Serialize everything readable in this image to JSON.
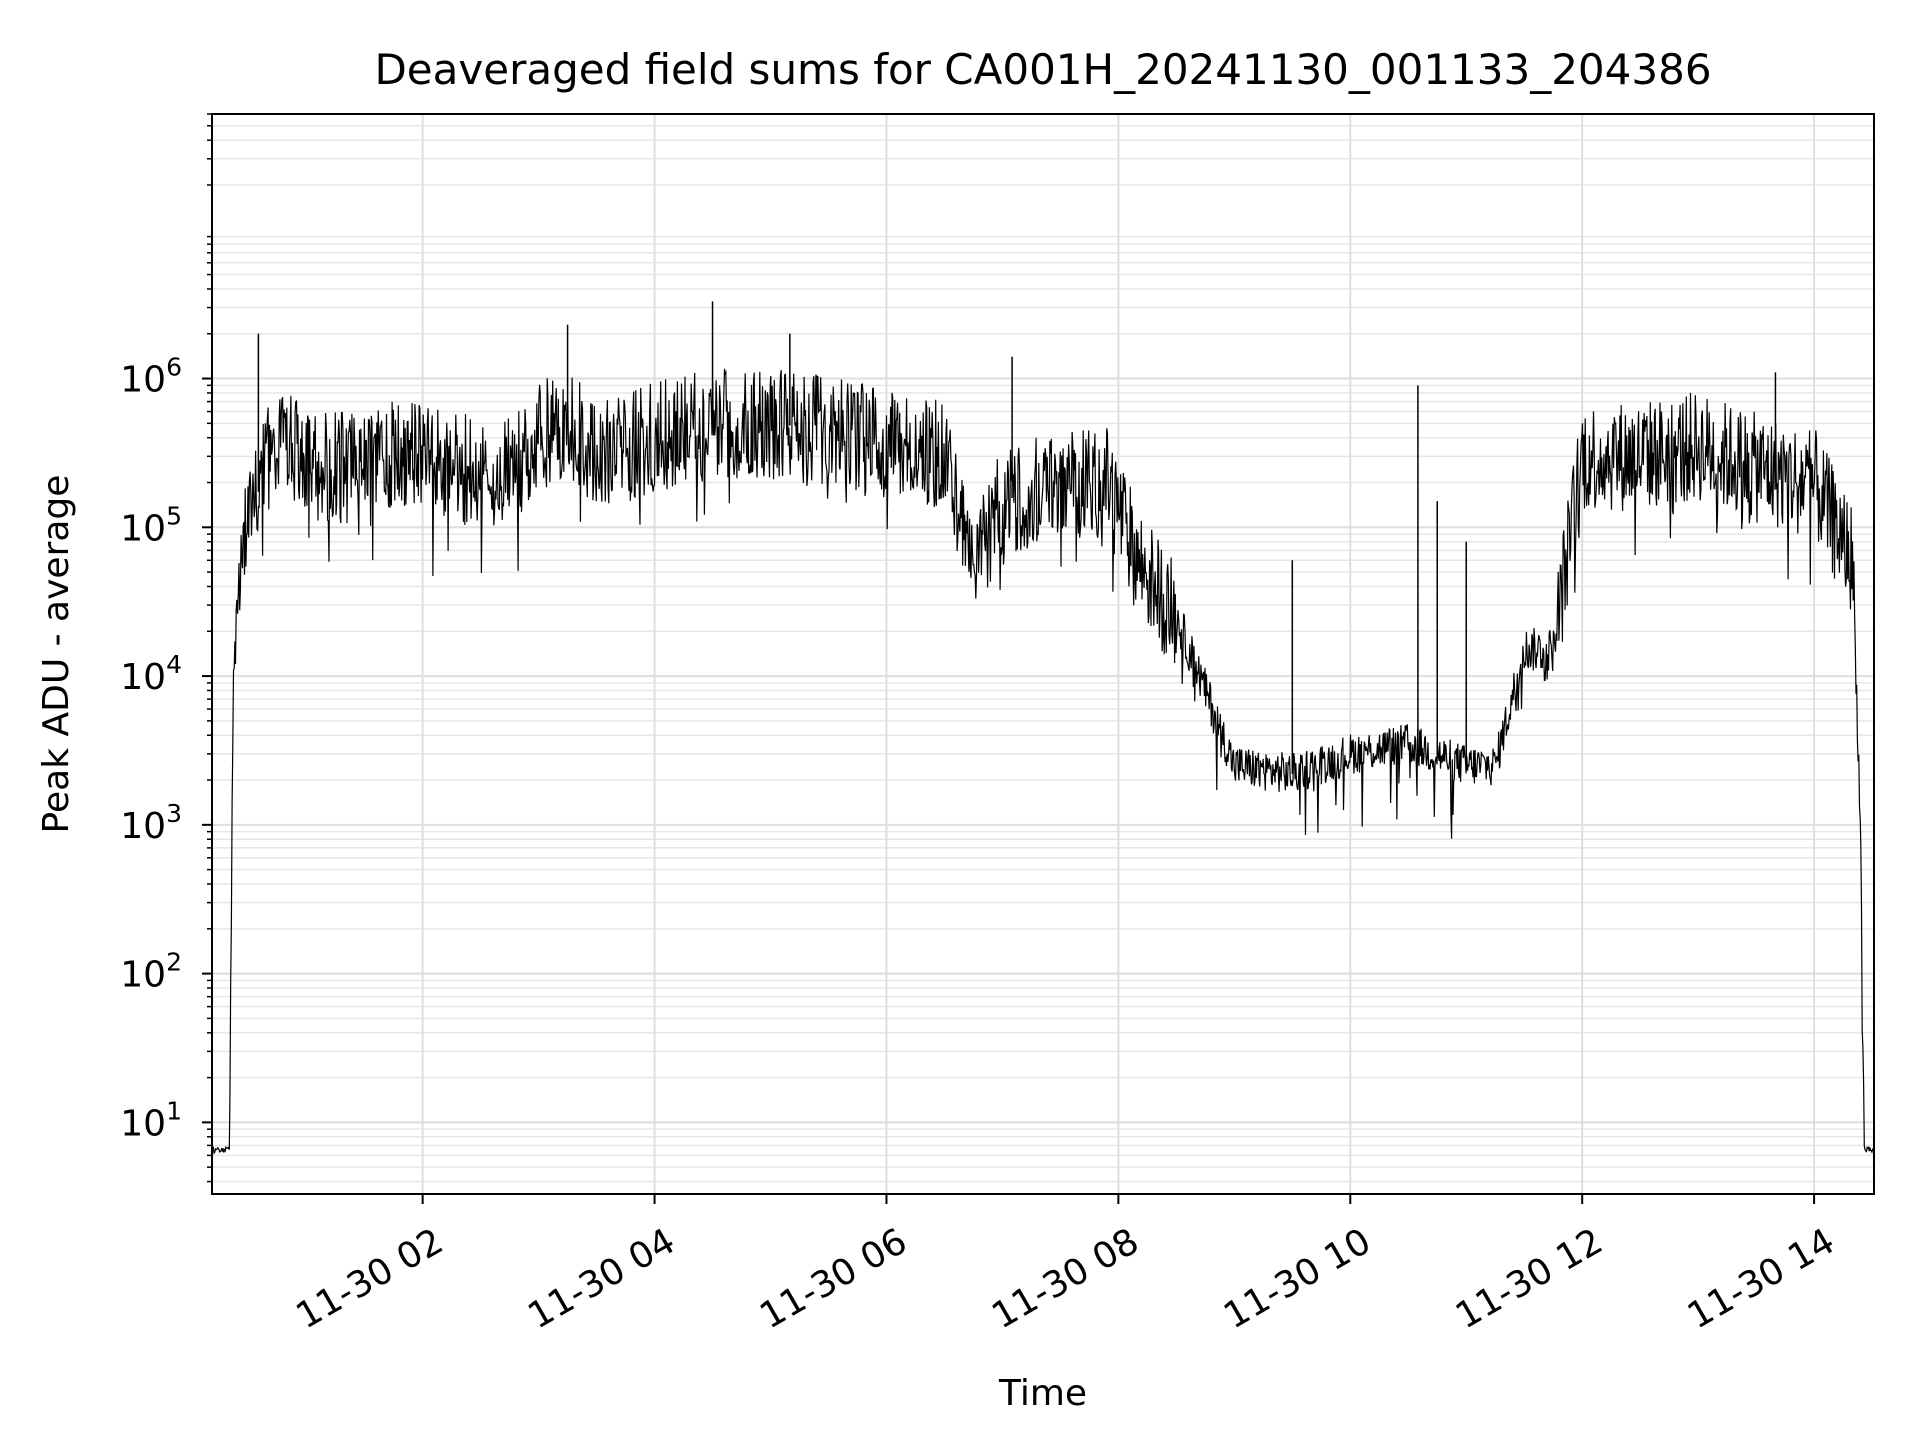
{
  "chart_data": {
    "type": "line",
    "title": "Deaveraged field sums for CA001H_20241130_001133_204386",
    "xlabel": "Time",
    "ylabel": "Peak ADU - average",
    "yscale": "log",
    "ylim": [
      3.3,
      60000000
    ],
    "xlim": [
      "11-30 00:11",
      "11-30 14:31"
    ],
    "x_ticks": [
      "11-30 02",
      "11-30 04",
      "11-30 06",
      "11-30 08",
      "11-30 10",
      "11-30 12",
      "11-30 14"
    ],
    "y_ticks": [
      {
        "base": "10",
        "exp": "1",
        "value": 10
      },
      {
        "base": "10",
        "exp": "2",
        "value": 100
      },
      {
        "base": "10",
        "exp": "3",
        "value": 1000
      },
      {
        "base": "10",
        "exp": "4",
        "value": 10000
      },
      {
        "base": "10",
        "exp": "5",
        "value": 100000
      },
      {
        "base": "10",
        "exp": "6",
        "value": 1000000
      }
    ],
    "grid": true,
    "series": [
      {
        "color": "#000000",
        "x": [
          "11-30 00:11",
          "11-30 00:20",
          "11-30 00:22",
          "11-30 00:24",
          "11-30 00:30",
          "11-30 00:40",
          "11-30 00:50",
          "11-30 01:00",
          "11-30 01:20",
          "11-30 01:40",
          "11-30 02:00",
          "11-30 02:20",
          "11-30 02:40",
          "11-30 03:00",
          "11-30 03:15",
          "11-30 03:30",
          "11-30 04:00",
          "11-30 04:30",
          "11-30 05:00",
          "11-30 05:30",
          "11-30 06:00",
          "11-30 06:30",
          "11-30 06:45",
          "11-30 07:00",
          "11-30 07:30",
          "11-30 07:55",
          "11-30 08:10",
          "11-30 08:30",
          "11-30 08:45",
          "11-30 09:00",
          "11-30 09:30",
          "11-30 10:00",
          "11-30 10:30",
          "11-30 11:00",
          "11-30 11:15",
          "11-30 11:30",
          "11-30 11:45",
          "11-30 12:00",
          "11-30 12:30",
          "11-30 13:00",
          "11-30 13:30",
          "11-30 14:00",
          "11-30 14:20",
          "11-30 14:24",
          "11-30 14:26",
          "11-30 14:31"
        ],
        "values": [
          6.5,
          6.5,
          10000,
          50000,
          100000,
          300000,
          350000,
          250000,
          250000,
          300000,
          300000,
          250000,
          200000,
          400000,
          500000,
          300000,
          400000,
          500000,
          500000,
          450000,
          350000,
          300000,
          50000,
          150000,
          200000,
          200000,
          60000,
          25000,
          8000,
          2500,
          2200,
          3000,
          3500,
          2500,
          2500,
          15000,
          15000,
          300000,
          300000,
          350000,
          250000,
          200000,
          60000,
          1000,
          6.5,
          6.5
        ]
      }
    ],
    "annotations": [
      {
        "x": "11-30 00:35",
        "value": 2000000
      },
      {
        "x": "11-30 03:15",
        "value": 2300000
      },
      {
        "x": "11-30 04:30",
        "value": 3300000
      },
      {
        "x": "11-30 05:10",
        "value": 2000000
      },
      {
        "x": "11-30 07:05",
        "value": 1400000
      },
      {
        "x": "11-30 09:30",
        "value": 60000
      },
      {
        "x": "11-30 10:35",
        "value": 900000
      },
      {
        "x": "11-30 10:45",
        "value": 150000
      },
      {
        "x": "11-30 11:00",
        "value": 80000
      },
      {
        "x": "11-30 13:40",
        "value": 1100000
      }
    ]
  }
}
